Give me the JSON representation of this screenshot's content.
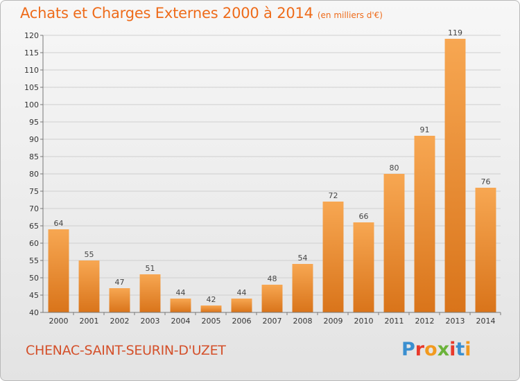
{
  "header": {
    "title": "Achats et Charges Externes 2000 à 2014",
    "subtitle": "(en milliers d'€)"
  },
  "footer": {
    "commune": "CHENAC-SAINT-SEURIN-D'UZET",
    "logo_text": "Proxiti",
    "logo_colors": [
      "#3a8fd0",
      "#e8392b",
      "#f29a1f",
      "#6bb33a",
      "#e8392b",
      "#3a8fd0",
      "#f29a1f"
    ]
  },
  "colors": {
    "bar_light": "#f7a752",
    "bar_dark": "#d9741a",
    "grid": "#cfcfcf",
    "accent": "#ee6b1a"
  },
  "chart_data": {
    "type": "bar",
    "title": "Achats et Charges Externes 2000 à 2014",
    "subtitle": "(en milliers d'€)",
    "categories": [
      "2000",
      "2001",
      "2002",
      "2003",
      "2004",
      "2005",
      "2006",
      "2007",
      "2008",
      "2009",
      "2010",
      "2011",
      "2012",
      "2013",
      "2014"
    ],
    "values": [
      64,
      55,
      47,
      51,
      44,
      42,
      44,
      48,
      54,
      72,
      66,
      80,
      91,
      119,
      76
    ],
    "ylim": [
      40,
      120
    ],
    "yticks": [
      40,
      45,
      50,
      55,
      60,
      65,
      70,
      75,
      80,
      85,
      90,
      95,
      100,
      105,
      110,
      115,
      120
    ],
    "grid": true,
    "xlabel": "",
    "ylabel": ""
  }
}
